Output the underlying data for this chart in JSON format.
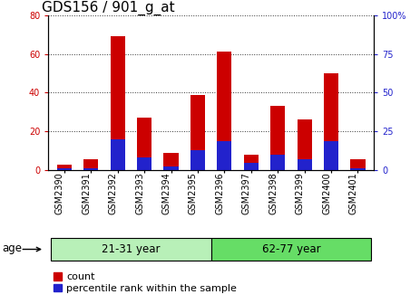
{
  "title": "GDS156 / 901_g_at",
  "samples": [
    "GSM2390",
    "GSM2391",
    "GSM2392",
    "GSM2393",
    "GSM2394",
    "GSM2395",
    "GSM2396",
    "GSM2397",
    "GSM2398",
    "GSM2399",
    "GSM2400",
    "GSM2401"
  ],
  "count_values": [
    3,
    5.5,
    69,
    27,
    9,
    39,
    61,
    8,
    33,
    26,
    50,
    5.5
  ],
  "percentile_values": [
    1.5,
    1.5,
    20,
    8,
    2.5,
    13,
    18.5,
    5,
    10,
    7,
    19,
    1.5
  ],
  "groups": [
    {
      "label": "21-31 year",
      "start": 0,
      "end": 6,
      "color": "#b8f0b8"
    },
    {
      "label": "62-77 year",
      "start": 6,
      "end": 12,
      "color": "#66dd66"
    }
  ],
  "ylim_left": [
    0,
    80
  ],
  "ylim_right": [
    0,
    100
  ],
  "yticks_left": [
    0,
    20,
    40,
    60,
    80
  ],
  "yticks_right": [
    0,
    25,
    50,
    75,
    100
  ],
  "ytick_labels_right": [
    "0",
    "25",
    "50",
    "75",
    "100%"
  ],
  "bar_width": 0.55,
  "count_color": "#cc0000",
  "percentile_color": "#2222cc",
  "background_color": "#ffffff",
  "plot_bg_color": "#ffffff",
  "grid_color": "#000000",
  "age_label": "age",
  "legend_count": "count",
  "legend_percentile": "percentile rank within the sample",
  "title_fontsize": 11,
  "tick_fontsize": 7,
  "label_fontsize": 8.5
}
